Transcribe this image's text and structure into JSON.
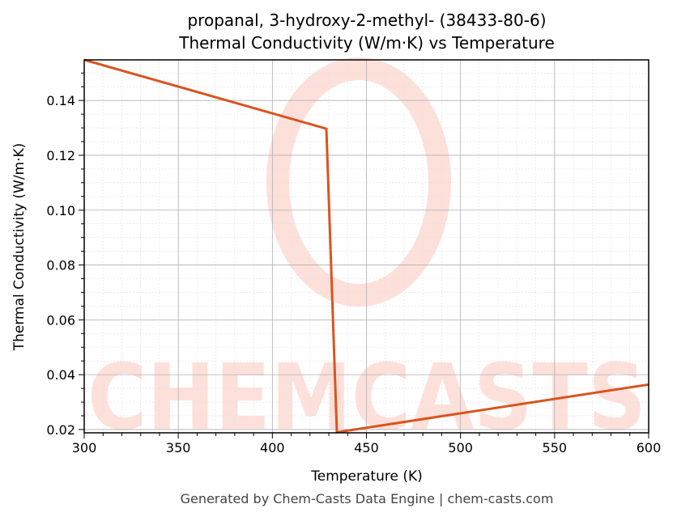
{
  "title": {
    "line1": "propanal, 3-hydroxy-2-methyl- (38433-80-6)",
    "line2": "Thermal Conductivity (W/m·K) vs Temperature"
  },
  "footer": "Generated by Chem-Casts Data Engine | chem-casts.com",
  "watermark": "CHEMCASTS",
  "colors": {
    "line": "#d9541e",
    "watermark": "#fde0da",
    "grid_major": "#b0b0b0",
    "grid_minor": "#e0e0e0"
  },
  "chart_data": {
    "type": "line",
    "title": "propanal, 3-hydroxy-2-methyl- (38433-80-6) Thermal Conductivity (W/m·K) vs Temperature",
    "xlabel": "Temperature (K)",
    "ylabel": "Thermal Conductivity (W/m·K)",
    "xlim": [
      300,
      600
    ],
    "ylim": [
      0.0188,
      0.1548
    ],
    "xticks": [
      300,
      350,
      400,
      450,
      500,
      550,
      600
    ],
    "xtick_labels": [
      "300",
      "350",
      "400",
      "450",
      "500",
      "550",
      "600"
    ],
    "yticks": [
      0.02,
      0.04,
      0.06,
      0.08,
      0.1,
      0.12,
      0.14
    ],
    "ytick_labels": [
      "0.02",
      "0.04",
      "0.06",
      "0.08",
      "0.10",
      "0.12",
      "0.14"
    ],
    "grid": true,
    "legend": null,
    "series": [
      {
        "name": "Thermal Conductivity",
        "x": [
          300,
          428.7,
          434.3,
          600
        ],
        "y": [
          0.1548,
          0.1297,
          0.019,
          0.0364
        ]
      }
    ]
  }
}
